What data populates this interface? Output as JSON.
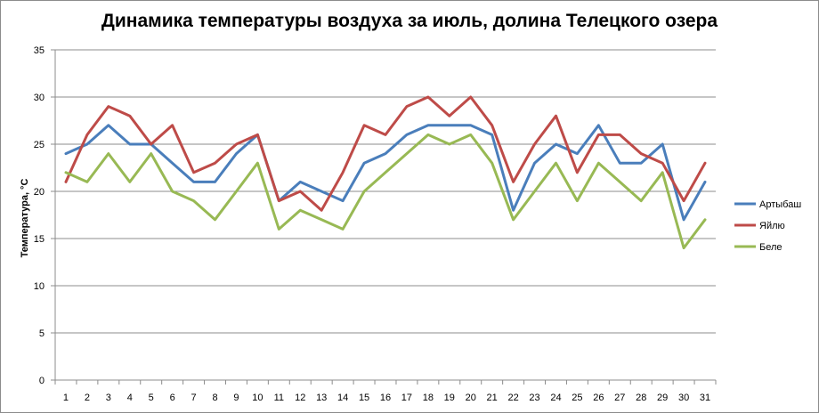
{
  "chart_data": {
    "type": "line",
    "title": "Динамика температуры воздуха за июль, долина Телецкого озера",
    "ylabel": "Температура, °C",
    "xlabel": "",
    "ylim": [
      0,
      35
    ],
    "yticks": [
      0,
      5,
      10,
      15,
      20,
      25,
      30,
      35
    ],
    "categories": [
      "1",
      "2",
      "3",
      "4",
      "5",
      "6",
      "7",
      "8",
      "9",
      "10",
      "11",
      "12",
      "13",
      "14",
      "15",
      "16",
      "17",
      "18",
      "19",
      "20",
      "21",
      "22",
      "23",
      "24",
      "25",
      "26",
      "27",
      "28",
      "29",
      "30",
      "31"
    ],
    "grid": true,
    "legend_position": "right",
    "series": [
      {
        "name": "Артыбаш",
        "color": "#4a7ebb",
        "values": [
          24,
          25,
          27,
          25,
          25,
          23,
          21,
          21,
          24,
          26,
          19,
          21,
          20,
          19,
          23,
          24,
          26,
          27,
          27,
          27,
          26,
          18,
          23,
          25,
          24,
          27,
          23,
          23,
          25,
          17,
          21
        ]
      },
      {
        "name": "Яйлю",
        "color": "#be4b48",
        "values": [
          21,
          26,
          29,
          28,
          25,
          27,
          22,
          23,
          25,
          26,
          19,
          20,
          18,
          22,
          27,
          26,
          29,
          30,
          28,
          30,
          27,
          21,
          25,
          28,
          22,
          26,
          26,
          24,
          23,
          19,
          23
        ]
      },
      {
        "name": "Беле",
        "color": "#98b954",
        "values": [
          22,
          21,
          24,
          21,
          24,
          20,
          19,
          17,
          20,
          23,
          16,
          18,
          17,
          16,
          20,
          22,
          24,
          26,
          25,
          26,
          23,
          17,
          20,
          23,
          19,
          23,
          21,
          19,
          22,
          14,
          17
        ]
      }
    ]
  }
}
